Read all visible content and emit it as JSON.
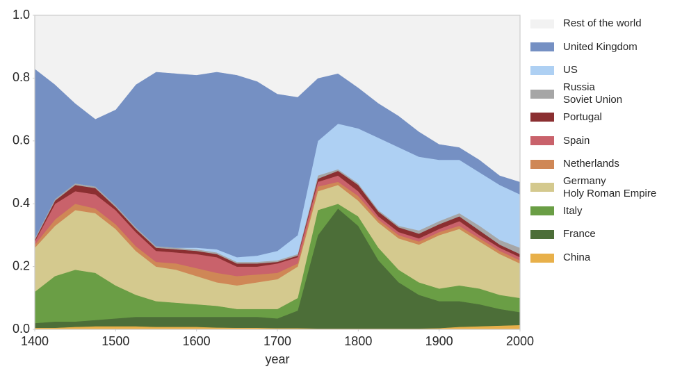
{
  "chart_data": {
    "type": "stacked-area",
    "x_label": "year",
    "x": [
      1400,
      1425,
      1450,
      1475,
      1500,
      1525,
      1550,
      1575,
      1600,
      1625,
      1650,
      1675,
      1700,
      1725,
      1750,
      1775,
      1800,
      1825,
      1850,
      1875,
      1900,
      1925,
      1950,
      1975,
      2000
    ],
    "xlim": [
      1400,
      2000
    ],
    "xticks": [
      1400,
      1500,
      1600,
      1700,
      1800,
      1900,
      2000
    ],
    "ylim": [
      0,
      1
    ],
    "yticks": [
      {
        "value": 0,
        "label": "0.0"
      },
      0.2,
      0.4,
      0.6,
      0.8,
      {
        "value": 1,
        "label": "1.0"
      }
    ],
    "legend": "outside-right",
    "series": [
      {
        "name": "China",
        "color": "#e8b04a",
        "values": [
          0.005,
          0.005,
          0.008,
          0.01,
          0.01,
          0.01,
          0.008,
          0.008,
          0.008,
          0.006,
          0.005,
          0.005,
          0.004,
          0.004,
          0.003,
          0.003,
          0.003,
          0.003,
          0.003,
          0.003,
          0.004,
          0.008,
          0.01,
          0.012,
          0.014
        ]
      },
      {
        "name": "France",
        "color": "#4c6e38",
        "values": [
          0.015,
          0.02,
          0.017,
          0.02,
          0.025,
          0.03,
          0.032,
          0.032,
          0.032,
          0.034,
          0.035,
          0.035,
          0.031,
          0.056,
          0.297,
          0.382,
          0.327,
          0.217,
          0.147,
          0.107,
          0.086,
          0.082,
          0.07,
          0.053,
          0.041
        ]
      },
      {
        "name": "Italy",
        "color": "#6a9e45",
        "values": [
          0.1,
          0.145,
          0.165,
          0.15,
          0.105,
          0.07,
          0.05,
          0.045,
          0.04,
          0.035,
          0.025,
          0.025,
          0.03,
          0.04,
          0.08,
          0.015,
          0.03,
          0.04,
          0.04,
          0.04,
          0.04,
          0.05,
          0.05,
          0.045,
          0.045
        ]
      },
      {
        "name": "Germany\nHoly Roman Empire",
        "color": "#d4c98e",
        "values": [
          0.14,
          0.16,
          0.19,
          0.19,
          0.18,
          0.14,
          0.11,
          0.105,
          0.09,
          0.075,
          0.075,
          0.085,
          0.095,
          0.1,
          0.06,
          0.06,
          0.05,
          0.08,
          0.1,
          0.12,
          0.17,
          0.18,
          0.15,
          0.13,
          0.11
        ]
      },
      {
        "name": "Netherlands",
        "color": "#cf8756",
        "values": [
          0.01,
          0.02,
          0.02,
          0.015,
          0.015,
          0.015,
          0.015,
          0.02,
          0.025,
          0.03,
          0.03,
          0.025,
          0.02,
          0.01,
          0.015,
          0.01,
          0.015,
          0.01,
          0.01,
          0.01,
          0.01,
          0.01,
          0.01,
          0.01,
          0.01
        ]
      },
      {
        "name": "Spain",
        "color": "#c9626b",
        "values": [
          0.01,
          0.05,
          0.04,
          0.045,
          0.045,
          0.045,
          0.035,
          0.035,
          0.045,
          0.05,
          0.03,
          0.025,
          0.03,
          0.02,
          0.015,
          0.02,
          0.015,
          0.01,
          0.01,
          0.01,
          0.01,
          0.015,
          0.01,
          0.01,
          0.01
        ]
      },
      {
        "name": "Portugal",
        "color": "#8b2f31",
        "values": [
          0.005,
          0.01,
          0.02,
          0.02,
          0.01,
          0.01,
          0.01,
          0.01,
          0.01,
          0.01,
          0.01,
          0.01,
          0.005,
          0.005,
          0.01,
          0.015,
          0.02,
          0.015,
          0.015,
          0.015,
          0.015,
          0.015,
          0.015,
          0.01,
          0.01
        ]
      },
      {
        "name": "Russia\nSoviet Union",
        "color": "#a6a6a6",
        "values": [
          0.005,
          0.005,
          0.005,
          0.005,
          0.005,
          0.005,
          0.005,
          0.005,
          0.005,
          0.005,
          0.005,
          0.005,
          0.005,
          0.005,
          0.01,
          0.005,
          0.005,
          0.005,
          0.005,
          0.01,
          0.01,
          0.01,
          0.015,
          0.015,
          0.02
        ]
      },
      {
        "name": "US",
        "color": "#aed0f3",
        "values": [
          0,
          0,
          0,
          0,
          0,
          0,
          0,
          0,
          0.005,
          0.01,
          0.015,
          0.02,
          0.03,
          0.06,
          0.11,
          0.145,
          0.175,
          0.23,
          0.25,
          0.235,
          0.195,
          0.17,
          0.17,
          0.175,
          0.17
        ]
      },
      {
        "name": "United Kingdom",
        "color": "#7590c3",
        "values": [
          0.54,
          0.365,
          0.255,
          0.215,
          0.305,
          0.455,
          0.555,
          0.555,
          0.55,
          0.565,
          0.58,
          0.555,
          0.5,
          0.44,
          0.2,
          0.16,
          0.13,
          0.11,
          0.1,
          0.08,
          0.05,
          0.04,
          0.04,
          0.03,
          0.04
        ]
      },
      {
        "name": "Rest of the world",
        "color": "#f2f2f2",
        "values": [
          0.17,
          0.22,
          0.28,
          0.33,
          0.3,
          0.22,
          0.18,
          0.185,
          0.19,
          0.18,
          0.19,
          0.21,
          0.25,
          0.26,
          0.2,
          0.185,
          0.23,
          0.28,
          0.32,
          0.37,
          0.41,
          0.42,
          0.46,
          0.51,
          0.53
        ]
      }
    ]
  }
}
